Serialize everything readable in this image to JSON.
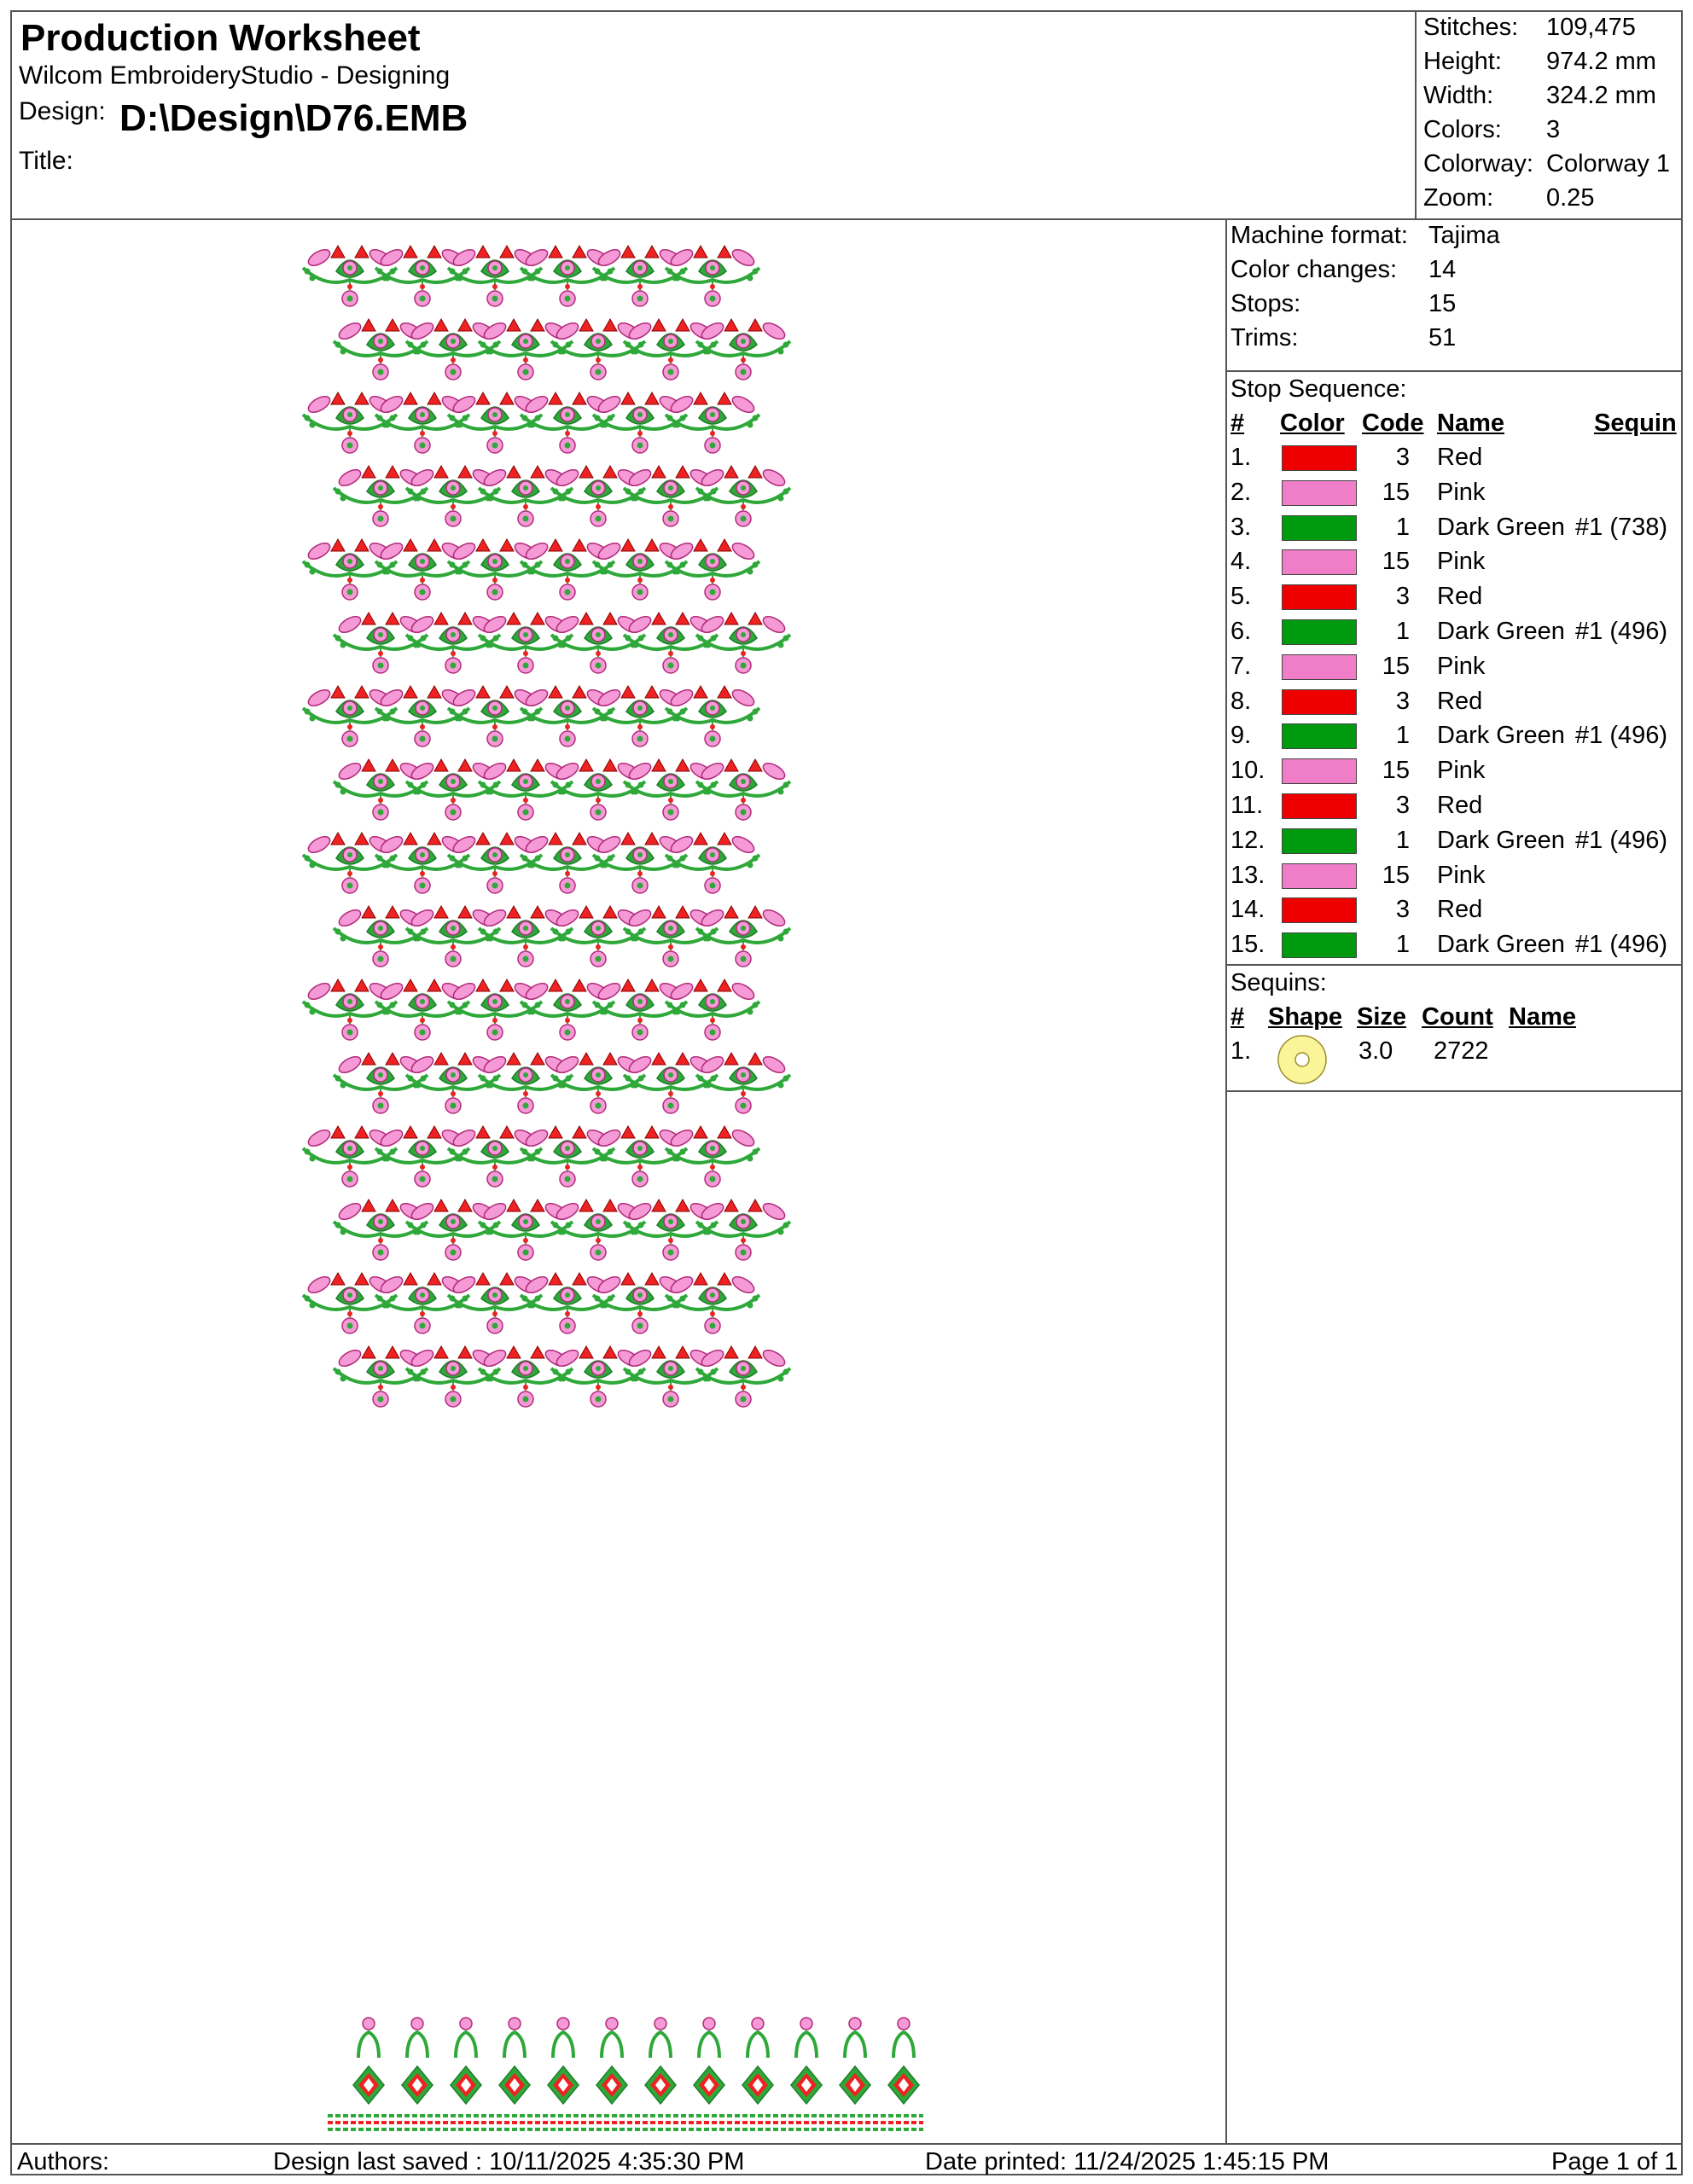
{
  "header": {
    "title": "Production Worksheet",
    "app": "Wilcom EmbroideryStudio - Designing",
    "design_label": "Design:",
    "design_value": "D:\\Design\\D76.EMB",
    "title_label": "Title:"
  },
  "stats": [
    {
      "label": "Stitches:",
      "value": "109,475"
    },
    {
      "label": "Height:",
      "value": "974.2 mm"
    },
    {
      "label": "Width:",
      "value": "324.2 mm"
    },
    {
      "label": "Colors:",
      "value": "3"
    },
    {
      "label": "Colorway:",
      "value": "Colorway 1"
    },
    {
      "label": "Zoom:",
      "value": "0.25"
    }
  ],
  "machine": [
    {
      "label": "Machine format:",
      "value": "Tajima"
    },
    {
      "label": "Color changes:",
      "value": "14"
    },
    {
      "label": "Stops:",
      "value": "15"
    },
    {
      "label": "Trims:",
      "value": "51"
    }
  ],
  "stop_sequence": {
    "title": "Stop Sequence:",
    "headers": {
      "num": "#",
      "color": "Color",
      "code": "Code",
      "name": "Name",
      "sequin": "Sequin"
    },
    "rows": [
      {
        "num": "1.",
        "color": "#ee0000",
        "code": "3",
        "name": "Red",
        "sequin": ""
      },
      {
        "num": "2.",
        "color": "#f07dc8",
        "code": "15",
        "name": "Pink",
        "sequin": ""
      },
      {
        "num": "3.",
        "color": "#009a0e",
        "code": "1",
        "name": "Dark Green",
        "sequin": "#1 (738)"
      },
      {
        "num": "4.",
        "color": "#f07dc8",
        "code": "15",
        "name": "Pink",
        "sequin": ""
      },
      {
        "num": "5.",
        "color": "#ee0000",
        "code": "3",
        "name": "Red",
        "sequin": ""
      },
      {
        "num": "6.",
        "color": "#009a0e",
        "code": "1",
        "name": "Dark Green",
        "sequin": "#1 (496)"
      },
      {
        "num": "7.",
        "color": "#f07dc8",
        "code": "15",
        "name": "Pink",
        "sequin": ""
      },
      {
        "num": "8.",
        "color": "#ee0000",
        "code": "3",
        "name": "Red",
        "sequin": ""
      },
      {
        "num": "9.",
        "color": "#009a0e",
        "code": "1",
        "name": "Dark Green",
        "sequin": "#1 (496)"
      },
      {
        "num": "10.",
        "color": "#f07dc8",
        "code": "15",
        "name": "Pink",
        "sequin": ""
      },
      {
        "num": "11.",
        "color": "#ee0000",
        "code": "3",
        "name": "Red",
        "sequin": ""
      },
      {
        "num": "12.",
        "color": "#009a0e",
        "code": "1",
        "name": "Dark Green",
        "sequin": "#1 (496)"
      },
      {
        "num": "13.",
        "color": "#f07dc8",
        "code": "15",
        "name": "Pink",
        "sequin": ""
      },
      {
        "num": "14.",
        "color": "#ee0000",
        "code": "3",
        "name": "Red",
        "sequin": ""
      },
      {
        "num": "15.",
        "color": "#009a0e",
        "code": "1",
        "name": "Dark Green",
        "sequin": "#1 (496)"
      }
    ]
  },
  "sequins": {
    "title": "Sequins:",
    "headers": {
      "num": "#",
      "shape": "Shape",
      "size": "Size",
      "count": "Count",
      "name": "Name"
    },
    "rows": [
      {
        "num": "1.",
        "shape_icon": "sequin-circle-icon",
        "shape_color": "#fbf59a",
        "size": "3.0",
        "count": "2722",
        "name": ""
      }
    ]
  },
  "footer": {
    "authors": "Authors:",
    "saved": "Design last saved : 10/11/2025 4:35:30 PM",
    "printed": "Date printed: 11/24/2025 1:45:15 PM",
    "page": "Page 1 of 1"
  },
  "palette": {
    "red": "#ee0000",
    "pink": "#f07dc8",
    "green": "#2fa83a",
    "dark_green": "#1d7f2a"
  }
}
